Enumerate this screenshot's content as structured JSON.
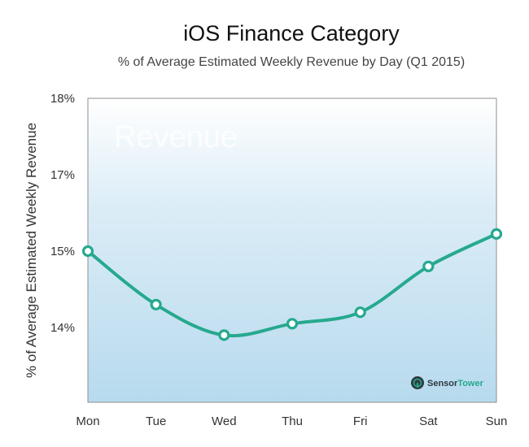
{
  "chart_data": {
    "type": "line",
    "title": "iOS Finance Category",
    "subtitle": "% of Average Estimated Weekly Revenue by Day (Q1 2015)",
    "xlabel": "",
    "ylabel": "% of Average Estimated Weekly Revenue",
    "categories": [
      "Mon",
      "Tue",
      "Wed",
      "Thu",
      "Fri",
      "Sat",
      "Sun"
    ],
    "y_ticks": [
      "18%",
      "17%",
      "15%",
      "14%"
    ],
    "series": [
      {
        "values": [
          15.0,
          14.3,
          13.9,
          14.05,
          14.2,
          14.8,
          15.45
        ],
        "color": "#26a98e"
      }
    ],
    "grid": false,
    "watermark": "Revenue",
    "brand": {
      "name_primary": "Sensor",
      "name_secondary": "Tower",
      "color": "#26a98e"
    }
  }
}
